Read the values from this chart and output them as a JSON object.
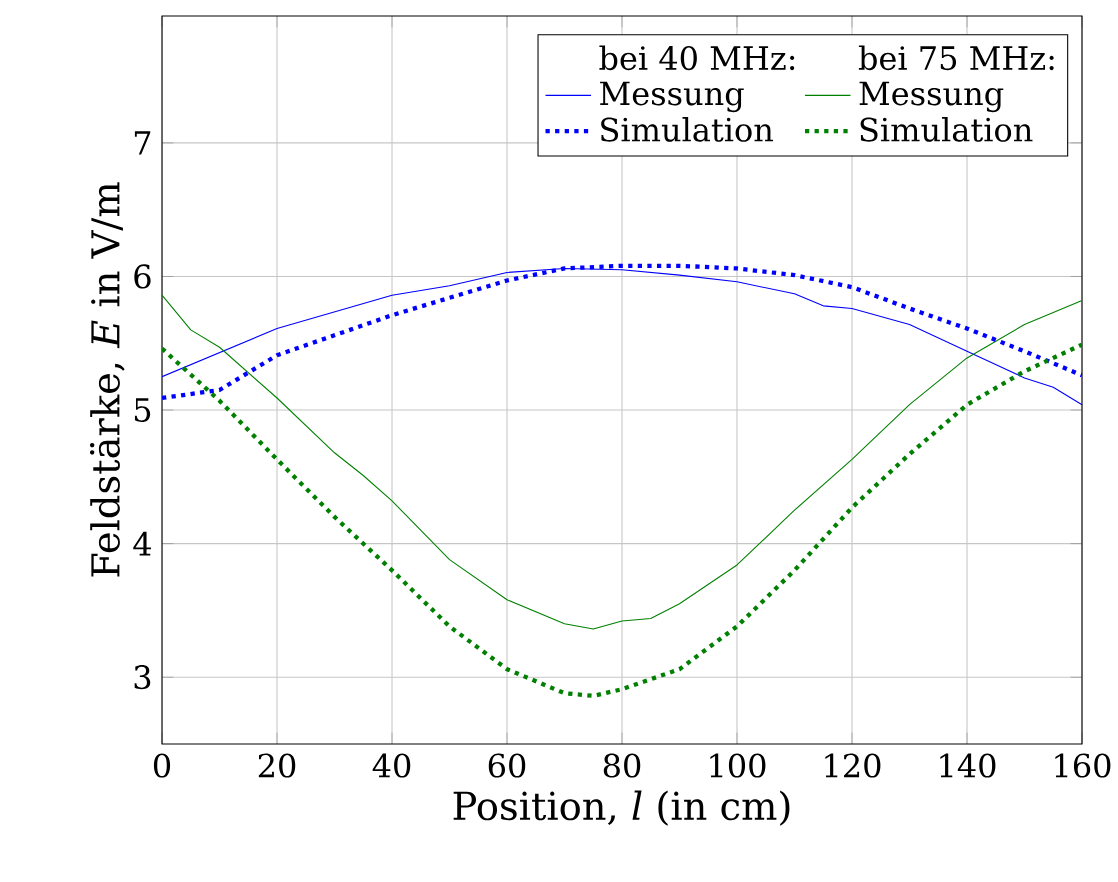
{
  "chart_data": {
    "type": "line",
    "xlabel": "Position, *l* (in cm)",
    "ylabel": "Feldstärke, *E* in V/m",
    "xlim": [
      0,
      160
    ],
    "ylim": [
      2.5,
      7.95
    ],
    "xticks": [
      0,
      20,
      40,
      60,
      80,
      100,
      120,
      140,
      160
    ],
    "yticks": [
      3,
      4,
      5,
      6,
      7
    ],
    "grid": true,
    "legend": "top right",
    "legend_title": [
      "bei 40 MHz:",
      "bei 75 MHz:"
    ],
    "series": [
      {
        "name": "Messung",
        "color": "#0000ff",
        "line_style": "solid",
        "x": [
          0,
          20,
          40,
          50,
          60,
          70,
          80,
          90,
          100,
          110,
          115,
          120,
          130,
          140,
          150,
          155,
          160
        ],
        "values": [
          5.25,
          5.61,
          5.86,
          5.93,
          6.03,
          6.06,
          6.05,
          6.01,
          5.96,
          5.87,
          5.78,
          5.76,
          5.64,
          5.44,
          5.24,
          5.17,
          5.04
        ]
      },
      {
        "name": "Messung",
        "color": "#008000",
        "line_style": "solid",
        "x": [
          0,
          5,
          10,
          20,
          30,
          35,
          40,
          50,
          60,
          70,
          75,
          80,
          85,
          90,
          100,
          110,
          120,
          130,
          140,
          150,
          160
        ],
        "values": [
          5.86,
          5.6,
          5.47,
          5.09,
          4.68,
          4.51,
          4.32,
          3.88,
          3.58,
          3.4,
          3.36,
          3.42,
          3.44,
          3.55,
          3.84,
          4.25,
          4.63,
          5.04,
          5.39,
          5.64,
          5.82
        ]
      },
      {
        "name": "Simulation",
        "color": "#0000ff",
        "line_style": "dotted",
        "x": [
          0,
          10,
          20,
          40,
          60,
          70,
          80,
          90,
          100,
          110,
          120,
          130,
          140,
          150,
          160
        ],
        "values": [
          5.09,
          5.15,
          5.41,
          5.71,
          5.97,
          6.06,
          6.08,
          6.08,
          6.06,
          6.01,
          5.92,
          5.76,
          5.61,
          5.44,
          5.26
        ]
      },
      {
        "name": "Simulation",
        "color": "#008000",
        "line_style": "dotted",
        "x": [
          0,
          10,
          20,
          30,
          40,
          50,
          60,
          70,
          75,
          80,
          90,
          100,
          110,
          120,
          130,
          140,
          150,
          160
        ],
        "values": [
          5.46,
          5.07,
          4.63,
          4.2,
          3.8,
          3.38,
          3.06,
          2.88,
          2.86,
          2.91,
          3.06,
          3.38,
          3.8,
          4.27,
          4.67,
          5.04,
          5.29,
          5.49
        ]
      }
    ]
  }
}
